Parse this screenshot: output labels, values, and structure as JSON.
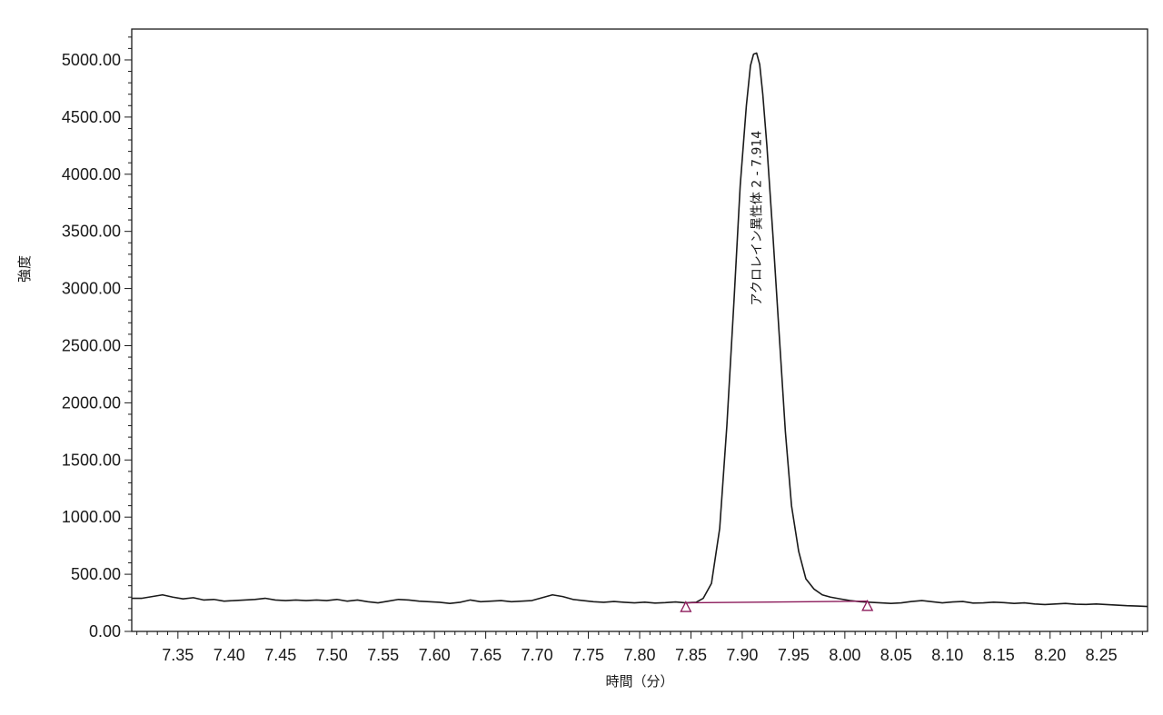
{
  "chart_data": {
    "type": "line",
    "title": "",
    "xlabel": "時間（分）",
    "ylabel": "強度",
    "xlim": [
      7.305,
      8.295
    ],
    "ylim": [
      0,
      5270
    ],
    "xticks_major": [
      "7.35",
      "7.40",
      "7.45",
      "7.50",
      "7.55",
      "7.60",
      "7.65",
      "7.70",
      "7.75",
      "7.80",
      "7.85",
      "7.90",
      "7.95",
      "8.00",
      "8.05",
      "8.10",
      "8.15",
      "8.20",
      "8.25"
    ],
    "yticks": [
      "0.00",
      "500.00",
      "1000.00",
      "1500.00",
      "2000.00",
      "2500.00",
      "3000.00",
      "3500.00",
      "4000.00",
      "4500.00",
      "5000.00"
    ],
    "grid": false,
    "legend": "none",
    "series": [
      {
        "color": "#1a1a1a",
        "x": [
          7.305,
          7.315,
          7.325,
          7.335,
          7.345,
          7.355,
          7.365,
          7.375,
          7.385,
          7.395,
          7.405,
          7.415,
          7.425,
          7.435,
          7.445,
          7.455,
          7.465,
          7.475,
          7.485,
          7.495,
          7.505,
          7.515,
          7.525,
          7.535,
          7.545,
          7.555,
          7.565,
          7.575,
          7.585,
          7.595,
          7.605,
          7.615,
          7.625,
          7.635,
          7.645,
          7.655,
          7.665,
          7.675,
          7.685,
          7.695,
          7.705,
          7.715,
          7.725,
          7.735,
          7.745,
          7.755,
          7.765,
          7.775,
          7.785,
          7.795,
          7.805,
          7.815,
          7.825,
          7.835,
          7.845,
          7.855,
          7.862,
          7.87,
          7.878,
          7.885,
          7.892,
          7.898,
          7.904,
          7.908,
          7.911,
          7.914,
          7.917,
          7.92,
          7.924,
          7.93,
          7.936,
          7.942,
          7.948,
          7.955,
          7.962,
          7.97,
          7.978,
          7.986,
          7.995,
          8.005,
          8.015,
          8.025,
          8.035,
          8.045,
          8.055,
          8.065,
          8.075,
          8.085,
          8.095,
          8.105,
          8.115,
          8.125,
          8.135,
          8.145,
          8.155,
          8.165,
          8.175,
          8.185,
          8.195,
          8.205,
          8.215,
          8.225,
          8.235,
          8.245,
          8.255,
          8.265,
          8.275,
          8.285,
          8.295
        ],
        "y": [
          290,
          290,
          305,
          320,
          300,
          285,
          295,
          275,
          280,
          265,
          270,
          275,
          280,
          290,
          275,
          270,
          275,
          270,
          275,
          270,
          280,
          265,
          275,
          260,
          250,
          265,
          280,
          275,
          265,
          260,
          255,
          245,
          255,
          275,
          260,
          265,
          270,
          260,
          265,
          270,
          295,
          320,
          305,
          280,
          270,
          260,
          255,
          262,
          255,
          250,
          256,
          248,
          252,
          258,
          250,
          255,
          290,
          420,
          900,
          1800,
          2900,
          3900,
          4600,
          4950,
          5050,
          5060,
          4960,
          4700,
          4250,
          3450,
          2600,
          1750,
          1100,
          700,
          460,
          370,
          320,
          300,
          285,
          270,
          260,
          255,
          250,
          245,
          250,
          262,
          270,
          260,
          250,
          258,
          262,
          248,
          250,
          256,
          252,
          245,
          250,
          240,
          235,
          240,
          245,
          238,
          236,
          240,
          235,
          230,
          225,
          222,
          218
        ]
      },
      {
        "name": "baseline",
        "color": "#8b1a5a",
        "x": [
          7.845,
          8.022
        ],
        "y": [
          250,
          265
        ]
      }
    ],
    "markers": [
      {
        "x": 7.845,
        "y": 210,
        "shape": "triangle",
        "color": "#8b1a5a"
      },
      {
        "x": 8.022,
        "y": 220,
        "shape": "triangle",
        "color": "#8b1a5a"
      }
    ],
    "annotations": [
      {
        "text": "アクロレイン異性体 2 - 7.914",
        "x": 7.914,
        "y": 2850,
        "rotation": -90
      }
    ]
  }
}
